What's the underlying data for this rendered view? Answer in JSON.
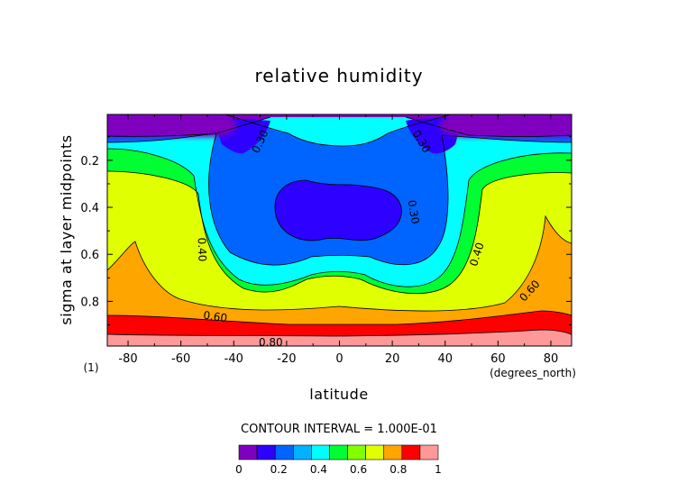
{
  "chart_data": {
    "type": "heatmap",
    "title": "relative humidity",
    "xlabel": "latitude",
    "ylabel": "sigma at layer midpoints",
    "x_unit_label": "(degrees_north)",
    "corner_label": "(1)",
    "xlim": [
      -87.86,
      87.86
    ],
    "ylim": [
      0.99,
      0.005
    ],
    "x_ticks": [
      -80,
      -60,
      -40,
      -20,
      0,
      20,
      40,
      60,
      80
    ],
    "x_tick_labels": [
      "-80",
      "-60",
      "-40",
      "-20",
      "0",
      "20",
      "40",
      "60",
      "80"
    ],
    "y_ticks": [
      0.2,
      0.4,
      0.6,
      0.8
    ],
    "y_tick_labels": [
      "0.2",
      "0.4",
      "0.6",
      "0.8"
    ],
    "contour_interval_label": "CONTOUR INTERVAL = 1.000E-01",
    "levels": [
      0,
      0.1,
      0.2,
      0.3,
      0.4,
      0.5,
      0.6,
      0.7,
      0.8,
      0.9,
      1.0
    ],
    "colorbar_ticks": [
      0,
      0.2,
      0.4,
      0.6,
      0.8,
      1
    ],
    "colorbar_tick_labels": [
      "0",
      "0.2",
      "0.4",
      "0.6",
      "0.8",
      "1"
    ],
    "contour_labels": [
      {
        "text": "0.40",
        "lat": -52,
        "sigma": 0.58,
        "rotate": 88
      },
      {
        "text": "0.40",
        "lat": 52,
        "sigma": 0.6,
        "rotate": -72
      },
      {
        "text": "0.60",
        "lat": -47,
        "sigma": 0.865,
        "rotate": 8
      },
      {
        "text": "0.60",
        "lat": 72,
        "sigma": 0.755,
        "rotate": -48
      },
      {
        "text": "0.80",
        "lat": -26,
        "sigma": 0.975,
        "rotate": 0
      },
      {
        "text": "0.30",
        "lat": -30,
        "sigma": 0.12,
        "rotate": -65
      },
      {
        "text": "0.30",
        "lat": 31,
        "sigma": 0.12,
        "rotate": 60
      },
      {
        "text": "0.30",
        "lat": 28,
        "sigma": 0.42,
        "rotate": 80
      }
    ]
  },
  "colors": [
    "#7f00bf",
    "#2d00ff",
    "#0064ff",
    "#00b2ff",
    "#00ffff",
    "#00ff32",
    "#83ff00",
    "#e0ff00",
    "#ffa500",
    "#ff0000",
    "#ff9898"
  ]
}
